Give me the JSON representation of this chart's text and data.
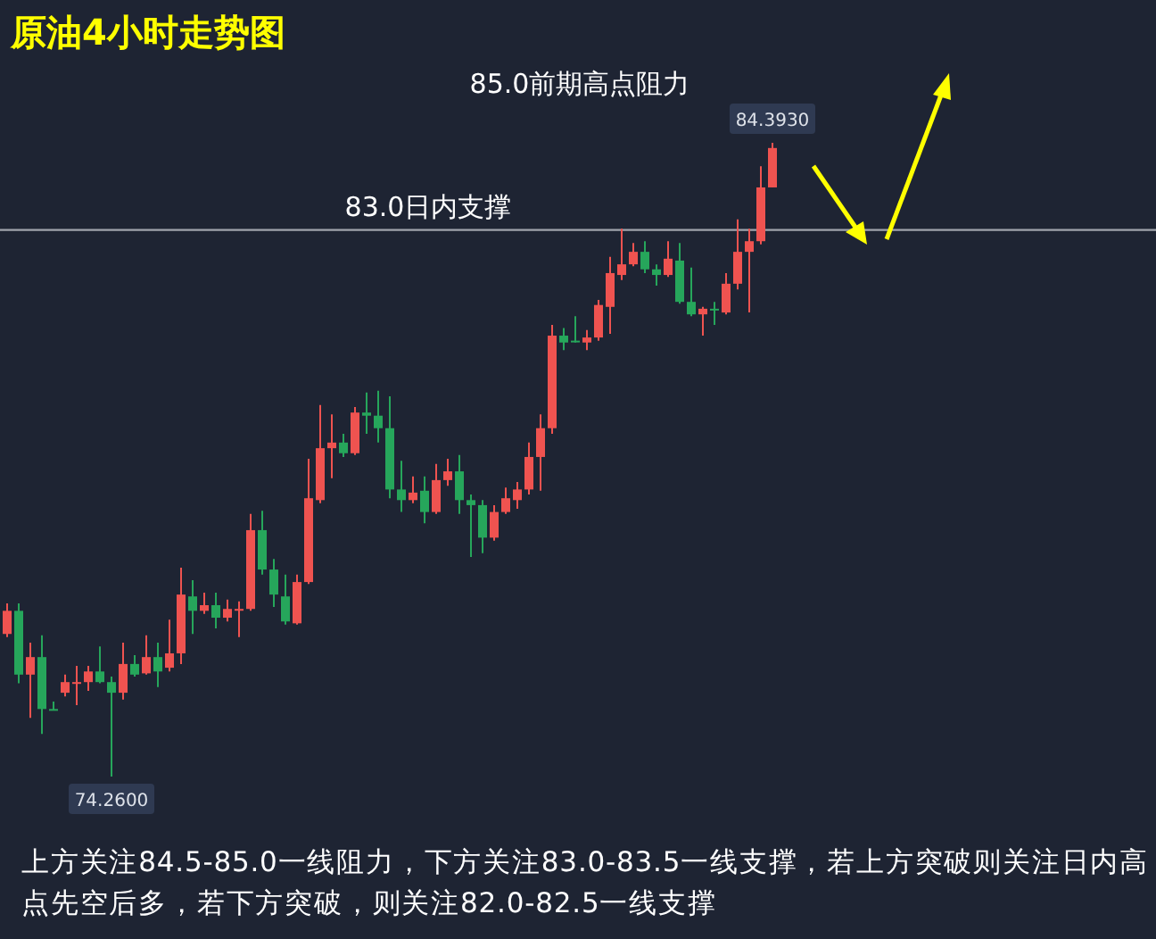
{
  "chart_data": {
    "type": "candlestick",
    "title": "原油4小时走势图",
    "categories": [
      null,
      null,
      null,
      null,
      null,
      null,
      null,
      null,
      null,
      null,
      null,
      null,
      null,
      null,
      null,
      null,
      null,
      null,
      null,
      null,
      null,
      null,
      null,
      null,
      null,
      null,
      null,
      null,
      null,
      null,
      null,
      null,
      null,
      null,
      null,
      null,
      null,
      null,
      null,
      null,
      null,
      null,
      null,
      null,
      null,
      null,
      null,
      null,
      null,
      null,
      null,
      null,
      null,
      null,
      null,
      null,
      null,
      null,
      null,
      null,
      null,
      null,
      null,
      null,
      null,
      null,
      null
    ],
    "ohlc": [
      [
        76.54,
        77.03,
        76.49,
        76.91
      ],
      [
        76.91,
        77.03,
        75.75,
        75.89
      ],
      [
        75.89,
        76.4,
        75.2,
        76.17
      ],
      [
        76.17,
        76.52,
        74.94,
        75.34
      ],
      [
        75.34,
        75.46,
        75.32,
        75.33
      ],
      [
        75.6,
        75.89,
        75.54,
        75.77
      ],
      [
        75.77,
        76.03,
        75.4,
        75.77
      ],
      [
        75.77,
        76.03,
        75.63,
        75.94
      ],
      [
        75.94,
        76.34,
        75.75,
        75.77
      ],
      [
        75.77,
        75.86,
        74.26,
        75.6
      ],
      [
        75.6,
        76.4,
        75.49,
        76.06
      ],
      [
        76.06,
        76.2,
        75.86,
        75.89
      ],
      [
        75.91,
        76.52,
        75.89,
        76.17
      ],
      [
        76.17,
        76.4,
        75.69,
        75.94
      ],
      [
        76.0,
        76.77,
        75.94,
        76.23
      ],
      [
        76.23,
        77.6,
        76.06,
        77.17
      ],
      [
        77.14,
        77.4,
        76.54,
        76.91
      ],
      [
        76.91,
        77.2,
        76.86,
        77.0
      ],
      [
        77.0,
        77.2,
        76.63,
        76.8
      ],
      [
        76.8,
        77.09,
        76.74,
        76.94
      ],
      [
        76.93,
        77.06,
        76.49,
        76.94
      ],
      [
        76.94,
        78.46,
        76.91,
        78.2
      ],
      [
        78.2,
        78.51,
        77.49,
        77.57
      ],
      [
        77.57,
        77.74,
        76.97,
        77.17
      ],
      [
        77.14,
        77.49,
        76.69,
        76.74
      ],
      [
        76.71,
        77.49,
        76.69,
        77.37
      ],
      [
        77.37,
        79.34,
        77.34,
        78.71
      ],
      [
        78.68,
        80.2,
        78.63,
        79.51
      ],
      [
        79.51,
        80.05,
        79.03,
        79.6
      ],
      [
        79.6,
        79.74,
        79.37,
        79.43
      ],
      [
        79.43,
        80.17,
        79.4,
        80.08
      ],
      [
        80.08,
        80.4,
        79.74,
        80.03
      ],
      [
        80.03,
        80.43,
        79.6,
        79.83
      ],
      [
        79.83,
        80.34,
        78.71,
        78.85
      ],
      [
        78.85,
        79.31,
        78.49,
        78.68
      ],
      [
        78.68,
        79.06,
        78.63,
        78.8
      ],
      [
        78.83,
        79.06,
        78.31,
        78.49
      ],
      [
        78.49,
        79.26,
        78.46,
        79.0
      ],
      [
        79.0,
        79.34,
        78.91,
        79.14
      ],
      [
        79.14,
        79.4,
        78.46,
        78.68
      ],
      [
        78.68,
        78.77,
        77.77,
        78.6
      ],
      [
        78.6,
        78.68,
        77.83,
        78.08
      ],
      [
        78.08,
        78.6,
        78.03,
        78.49
      ],
      [
        78.49,
        78.88,
        78.46,
        78.71
      ],
      [
        78.68,
        78.97,
        78.54,
        78.85
      ],
      [
        78.85,
        79.6,
        78.77,
        79.37
      ],
      [
        79.37,
        80.05,
        78.83,
        79.83
      ],
      [
        79.83,
        81.48,
        79.74,
        81.31
      ],
      [
        81.31,
        81.43,
        81.08,
        81.2
      ],
      [
        81.23,
        81.62,
        81.2,
        81.21
      ],
      [
        81.2,
        81.4,
        81.08,
        81.28
      ],
      [
        81.28,
        81.88,
        81.23,
        81.8
      ],
      [
        81.77,
        82.57,
        81.34,
        82.31
      ],
      [
        82.28,
        83.02,
        82.2,
        82.45
      ],
      [
        82.45,
        82.79,
        82.42,
        82.65
      ],
      [
        82.65,
        82.82,
        82.31,
        82.37
      ],
      [
        82.37,
        82.45,
        82.11,
        82.28
      ],
      [
        82.28,
        82.82,
        82.25,
        82.54
      ],
      [
        82.51,
        82.79,
        81.82,
        81.85
      ],
      [
        81.85,
        82.4,
        81.62,
        81.65
      ],
      [
        81.65,
        81.77,
        81.31,
        81.74
      ],
      [
        81.74,
        81.85,
        81.48,
        81.73
      ],
      [
        81.68,
        82.31,
        81.65,
        82.14
      ],
      [
        82.14,
        83.17,
        82.05,
        82.65
      ],
      [
        82.65,
        83.02,
        81.68,
        82.82
      ],
      [
        82.82,
        84.02,
        82.77,
        83.68
      ],
      [
        83.68,
        84.393,
        83.68,
        84.31
      ]
    ],
    "colors": [
      "#ef5350",
      "#26a65b",
      "#ef5350",
      "#26a65b",
      "#26a65b",
      "#ef5350",
      "#ef5350",
      "#ef5350",
      "#26a65b",
      "#26a65b",
      "#ef5350",
      "#26a65b",
      "#ef5350",
      "#26a65b",
      "#ef5350",
      "#ef5350",
      "#26a65b",
      "#ef5350",
      "#26a65b",
      "#ef5350",
      "#ef5350",
      "#ef5350",
      "#26a65b",
      "#26a65b",
      "#26a65b",
      "#ef5350",
      "#ef5350",
      "#ef5350",
      "#ef5350",
      "#26a65b",
      "#ef5350",
      "#26a65b",
      "#26a65b",
      "#26a65b",
      "#26a65b",
      "#ef5350",
      "#26a65b",
      "#ef5350",
      "#ef5350",
      "#26a65b",
      "#26a65b",
      "#26a65b",
      "#ef5350",
      "#ef5350",
      "#ef5350",
      "#ef5350",
      "#ef5350",
      "#ef5350",
      "#26a65b",
      "#26a65b",
      "#ef5350",
      "#ef5350",
      "#ef5350",
      "#ef5350",
      "#ef5350",
      "#26a65b",
      "#26a65b",
      "#ef5350",
      "#26a65b",
      "#26a65b",
      "#ef5350",
      "#26a65b",
      "#ef5350",
      "#ef5350",
      "#ef5350",
      "#ef5350",
      "#ef5350"
    ],
    "ref_lines": [
      {
        "axis": "y",
        "value": 83.0,
        "label": "83.0日内支撑",
        "color": "#a0a4ad"
      }
    ],
    "annotations": [
      {
        "text": "84.3930",
        "y": 84.393
      },
      {
        "text": "74.2600",
        "y": 74.26
      },
      "85.0前期高点阻力",
      "上方关注84.5-85.0一线阻力，下方关注83.0-83.5一线支撑，若上方突破则关注日内高点先空后多，若下方突破，则关注82.0-82.5一线支撑"
    ]
  }
}
